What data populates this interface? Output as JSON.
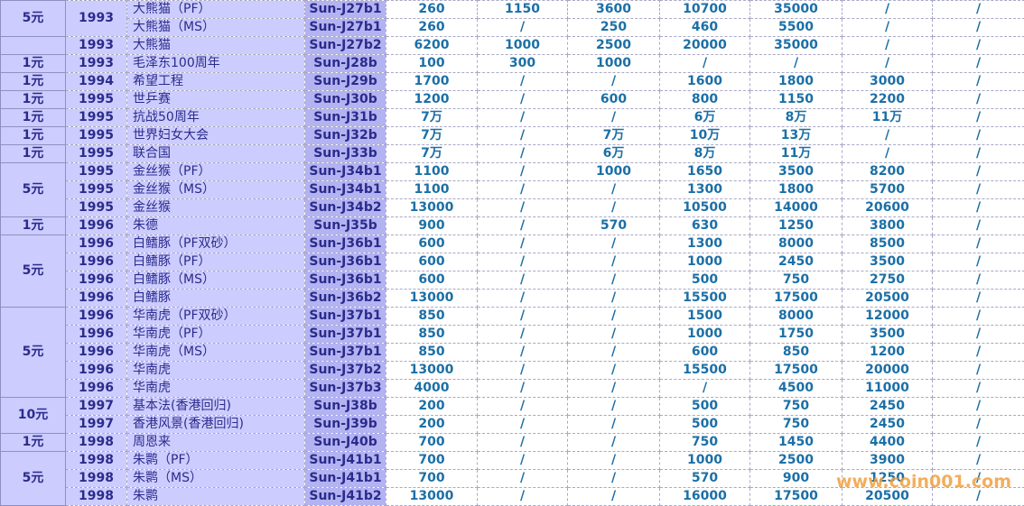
{
  "table": {
    "rows": [
      {
        "denomination": "5元",
        "year": "1993",
        "name": "大熊猫（PF）",
        "code": "Sun-J27b1",
        "prices": [
          "260",
          "1150",
          "3600",
          "10700",
          "35000",
          "/",
          "/"
        ]
      },
      {
        "name": "大熊猫（MS）",
        "code": "Sun-J27b1",
        "prices": [
          "260",
          "/",
          "250",
          "460",
          "5500",
          "/",
          "/"
        ]
      },
      {
        "year": "1993",
        "name": "大熊猫",
        "code": "Sun-J27b2",
        "prices": [
          "6200",
          "1000",
          "2500",
          "20000",
          "35000",
          "/",
          "/"
        ]
      },
      {
        "denomination": "1元",
        "year": "1993",
        "name": "毛泽东100周年",
        "code": "Sun-J28b",
        "prices": [
          "100",
          "300",
          "1000",
          "/",
          "/",
          "/",
          "/"
        ]
      },
      {
        "denomination": "1元",
        "year": "1994",
        "name": "希望工程",
        "code": "Sun-J29b",
        "prices": [
          "1700",
          "/",
          "/",
          "1600",
          "1800",
          "3000",
          "/"
        ]
      },
      {
        "denomination": "1元",
        "year": "1995",
        "name": "世乒赛",
        "code": "Sun-J30b",
        "prices": [
          "1200",
          "/",
          "600",
          "800",
          "1150",
          "2200",
          "/"
        ]
      },
      {
        "denomination": "1元",
        "year": "1995",
        "name": "抗战50周年",
        "code": "Sun-J31b",
        "prices": [
          "7万",
          "/",
          "/",
          "6万",
          "8万",
          "11万",
          "/"
        ]
      },
      {
        "denomination": "1元",
        "year": "1995",
        "name": "世界妇女大会",
        "code": "Sun-J32b",
        "prices": [
          "7万",
          "/",
          "7万",
          "10万",
          "13万",
          "/",
          "/"
        ]
      },
      {
        "denomination": "1元",
        "year": "1995",
        "name": "联合国",
        "code": "Sun-J33b",
        "prices": [
          "7万",
          "/",
          "6万",
          "8万",
          "11万",
          "/",
          "/"
        ]
      },
      {
        "denomination": "5元",
        "year": "1995",
        "name": "金丝猴（PF）",
        "code": "Sun-J34b1",
        "prices": [
          "1100",
          "/",
          "1000",
          "1650",
          "3500",
          "8200",
          "/"
        ]
      },
      {
        "year": "1995",
        "name": "金丝猴（MS）",
        "code": "Sun-J34b1",
        "prices": [
          "1100",
          "/",
          "/",
          "1300",
          "1800",
          "5700",
          "/"
        ]
      },
      {
        "year": "1995",
        "name": "金丝猴",
        "code": "Sun-J34b2",
        "prices": [
          "13000",
          "/",
          "/",
          "10500",
          "14000",
          "20600",
          "/"
        ]
      },
      {
        "denomination": "1元",
        "year": "1996",
        "name": "朱德",
        "code": "Sun-J35b",
        "prices": [
          "900",
          "/",
          "570",
          "630",
          "1250",
          "3800",
          "/"
        ]
      },
      {
        "denomination": "5元",
        "year": "1996",
        "name": "白鳍豚（PF双砂）",
        "code": "Sun-J36b1",
        "prices": [
          "600",
          "/",
          "/",
          "1300",
          "8000",
          "8500",
          "/"
        ]
      },
      {
        "year": "1996",
        "name": "白鳍豚（PF）",
        "code": "Sun-J36b1",
        "prices": [
          "600",
          "/",
          "/",
          "1000",
          "2450",
          "3500",
          "/"
        ]
      },
      {
        "year": "1996",
        "name": "白鳍豚（MS）",
        "code": "Sun-J36b1",
        "prices": [
          "600",
          "/",
          "/",
          "500",
          "750",
          "2750",
          "/"
        ]
      },
      {
        "year": "1996",
        "name": "白鳍豚",
        "code": "Sun-J36b2",
        "prices": [
          "13000",
          "/",
          "/",
          "15500",
          "17500",
          "20500",
          "/"
        ]
      },
      {
        "denomination": "5元",
        "year": "1996",
        "name": "华南虎（PF双砂）",
        "code": "Sun-J37b1",
        "prices": [
          "850",
          "/",
          "/",
          "1500",
          "8000",
          "12000",
          "/"
        ]
      },
      {
        "year": "1996",
        "name": "华南虎（PF）",
        "code": "Sun-J37b1",
        "prices": [
          "850",
          "/",
          "/",
          "1000",
          "1750",
          "3500",
          "/"
        ]
      },
      {
        "year": "1996",
        "name": "华南虎（MS）",
        "code": "Sun-J37b1",
        "prices": [
          "850",
          "/",
          "/",
          "600",
          "850",
          "1200",
          "/"
        ]
      },
      {
        "year": "1996",
        "name": "华南虎",
        "code": "Sun-J37b2",
        "prices": [
          "13000",
          "/",
          "/",
          "15500",
          "17500",
          "20000",
          "/"
        ]
      },
      {
        "year": "1996",
        "name": "华南虎",
        "code": "Sun-J37b3",
        "prices": [
          "4000",
          "/",
          "/",
          "/",
          "4500",
          "11000",
          "/"
        ]
      },
      {
        "denomination": "10元",
        "year": "1997",
        "name": "基本法(香港回归)",
        "code": "Sun-J38b",
        "prices": [
          "200",
          "/",
          "/",
          "500",
          "750",
          "2450",
          "/"
        ]
      },
      {
        "year": "1997",
        "name": "香港风景(香港回归)",
        "code": "Sun-J39b",
        "prices": [
          "200",
          "/",
          "/",
          "500",
          "750",
          "2450",
          "/"
        ]
      },
      {
        "denomination": "1元",
        "year": "1998",
        "name": "周恩来",
        "code": "Sun-J40b",
        "prices": [
          "700",
          "/",
          "/",
          "750",
          "1450",
          "4400",
          "/"
        ]
      },
      {
        "denomination": "5元",
        "year": "1998",
        "name": "朱鹮（PF）",
        "code": "Sun-J41b1",
        "prices": [
          "700",
          "/",
          "/",
          "1000",
          "2500",
          "3900",
          "/"
        ]
      },
      {
        "year": "1998",
        "name": "朱鹮（MS）",
        "code": "Sun-J41b1",
        "prices": [
          "700",
          "/",
          "/",
          "570",
          "900",
          "1250",
          "/"
        ]
      },
      {
        "year": "1998",
        "name": "朱鹮",
        "code": "Sun-J41b2",
        "prices": [
          "13000",
          "/",
          "/",
          "16000",
          "17500",
          "20500",
          "/"
        ]
      }
    ]
  },
  "watermark": "www.coin001.com"
}
